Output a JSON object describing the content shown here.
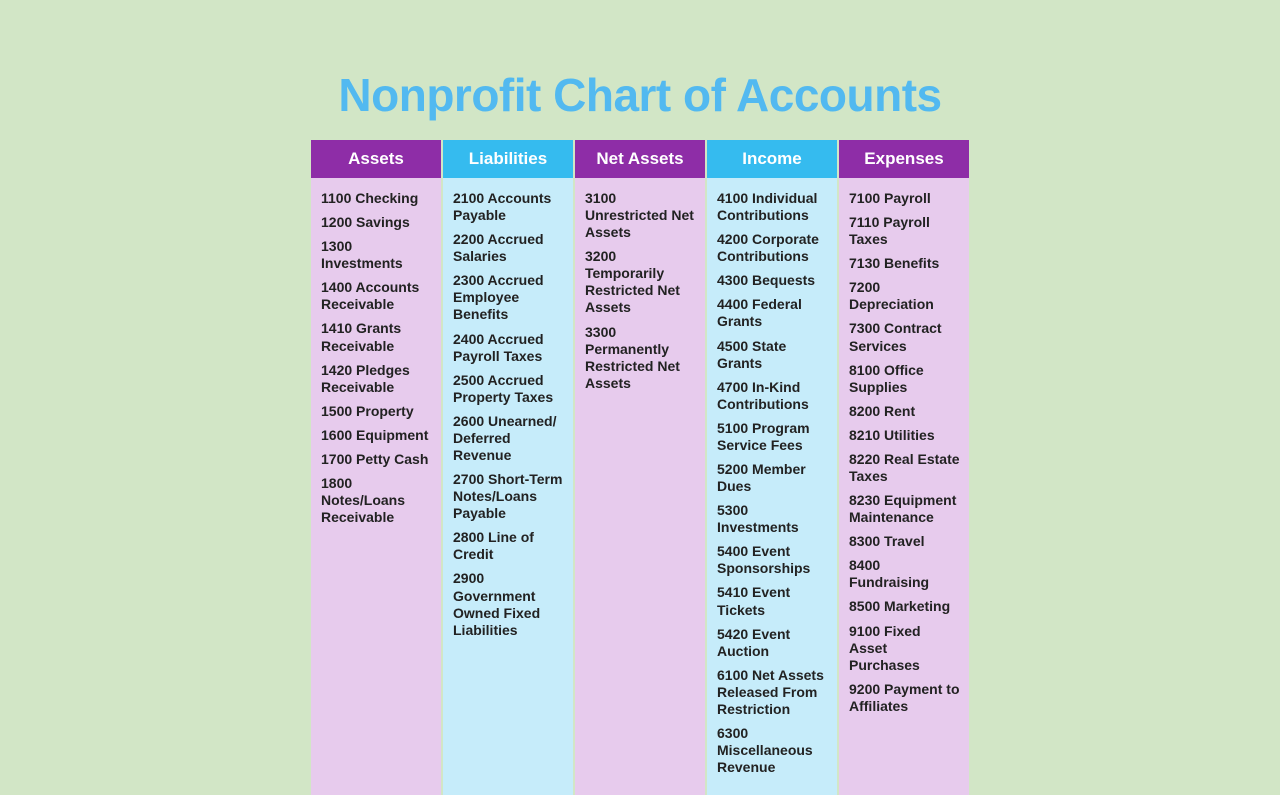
{
  "title": "Nonprofit Chart of Accounts",
  "title_color": "#52b9f0",
  "title_fontsize": 46,
  "background_color": "#d2e6c6",
  "header_colors": {
    "purple": "#8e2da7",
    "blue": "#35bbef"
  },
  "body_colors": {
    "purple": "#e7cbed",
    "blue": "#c6ecfa"
  },
  "text_color": "#222222",
  "header_text_color": "#ffffff",
  "item_fontsize": 14,
  "header_fontsize": 17,
  "columns": [
    {
      "header": "Assets",
      "scheme": "purple",
      "items": [
        "1100 Checking",
        "1200 Savings",
        "1300 Investments",
        "1400 Accounts Receivable",
        "1410 Grants Receivable",
        "1420 Pledges Receivable",
        "1500 Property",
        "1600 Equipment",
        "1700 Petty Cash",
        "1800 Notes/Loans Receivable"
      ]
    },
    {
      "header": "Liabilities",
      "scheme": "blue",
      "items": [
        "2100 Accounts Payable",
        "2200 Accrued Salaries",
        "2300 Accrued Employee Benefits",
        "2400 Accrued Payroll Taxes",
        "2500 Accrued Property Taxes",
        "2600 Unearned/ Deferred Revenue",
        "2700 Short-Term Notes/Loans Payable",
        "2800 Line of Credit",
        "2900 Government Owned Fixed Liabilities"
      ]
    },
    {
      "header": "Net Assets",
      "scheme": "purple",
      "items": [
        "3100 Unrestricted Net Assets",
        "3200 Temporarily Restricted Net Assets",
        "3300 Permanently Restricted Net Assets"
      ]
    },
    {
      "header": "Income",
      "scheme": "blue",
      "items": [
        "4100 Individual Contributions",
        "4200 Corporate Contributions",
        "4300 Bequests",
        "4400 Federal Grants",
        "4500 State Grants",
        "4700 In-Kind Contributions",
        "5100 Program Service Fees",
        "5200 Member Dues",
        "5300 Investments",
        "5400 Event Sponsorships",
        "5410 Event Tickets",
        "5420 Event Auction",
        "6100 Net Assets Released From Restriction",
        "6300 Miscellaneous Revenue"
      ]
    },
    {
      "header": "Expenses",
      "scheme": "purple",
      "items": [
        "7100 Payroll",
        "7110 Payroll Taxes",
        "7130 Benefits",
        "7200 Depreciation",
        "7300 Contract Services",
        "8100 Office Supplies",
        "8200 Rent",
        "8210 Utilities",
        "8220 Real Estate Taxes",
        "8230 Equipment Maintenance",
        "8300 Travel",
        "8400 Fundraising",
        "8500 Marketing",
        "9100 Fixed Asset Purchases",
        "9200 Payment to Affiliates"
      ]
    }
  ]
}
